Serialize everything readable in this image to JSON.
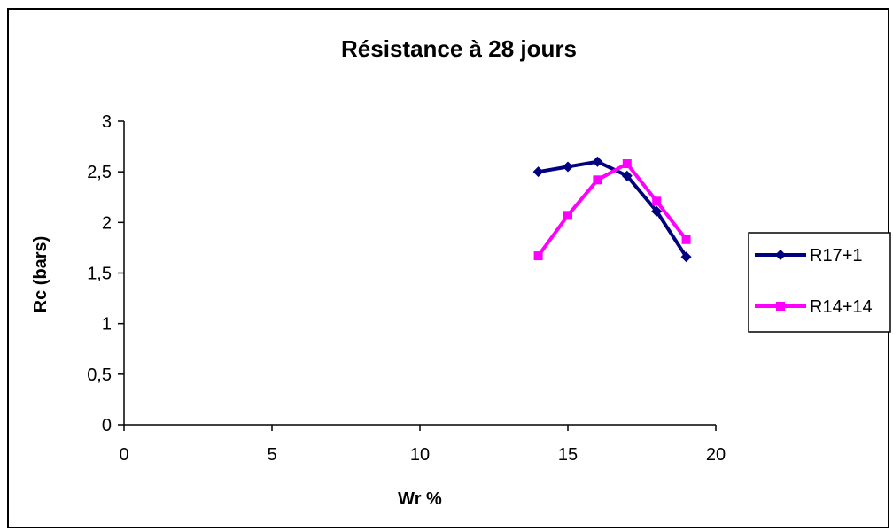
{
  "chart_data": {
    "type": "line",
    "title": "Résistance à 28 jours",
    "xlabel": "Wr %",
    "ylabel": "Rc (bars)",
    "xlim": [
      0,
      20
    ],
    "ylim": [
      0,
      3
    ],
    "xticks": [
      "0",
      "5",
      "10",
      "15",
      "20"
    ],
    "yticks": [
      "0",
      "0,5",
      "1",
      "1,5",
      "2",
      "2,5",
      "3"
    ],
    "grid": false,
    "legend_position": "right",
    "series": [
      {
        "name": "R17+1",
        "color": "#000080",
        "marker": "diamond",
        "x": [
          14,
          15,
          16,
          17,
          18,
          19
        ],
        "y": [
          2.5,
          2.55,
          2.6,
          2.46,
          2.11,
          1.66
        ]
      },
      {
        "name": "R14+14",
        "color": "#FF00FF",
        "marker": "square",
        "x": [
          14,
          15,
          16,
          17,
          18,
          19
        ],
        "y": [
          1.67,
          2.07,
          2.42,
          2.58,
          2.21,
          1.83
        ]
      }
    ]
  }
}
